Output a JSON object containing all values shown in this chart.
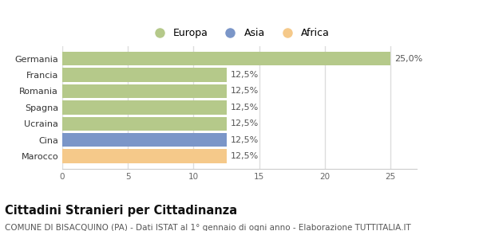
{
  "categories": [
    "Marocco",
    "Cina",
    "Ucraina",
    "Spagna",
    "Romania",
    "Francia",
    "Germania"
  ],
  "values": [
    12.5,
    12.5,
    12.5,
    12.5,
    12.5,
    12.5,
    25.0
  ],
  "bar_colors": [
    "#f5c98a",
    "#7b96c8",
    "#b5c98a",
    "#b5c98a",
    "#b5c98a",
    "#b5c98a",
    "#b5c98a"
  ],
  "bar_labels": [
    "12,5%",
    "12,5%",
    "12,5%",
    "12,5%",
    "12,5%",
    "12,5%",
    "25,0%"
  ],
  "xlim": [
    0,
    27
  ],
  "xticks": [
    0,
    5,
    10,
    15,
    20,
    25
  ],
  "legend_labels": [
    "Europa",
    "Asia",
    "Africa"
  ],
  "legend_colors": [
    "#b5c98a",
    "#7b96c8",
    "#f5c98a"
  ],
  "title": "Cittadini Stranieri per Cittadinanza",
  "subtitle": "COMUNE DI BISACQUINO (PA) - Dati ISTAT al 1° gennaio di ogni anno - Elaborazione TUTTITALIA.IT",
  "background_color": "#ffffff",
  "grid_color": "#dddddd",
  "label_fontsize": 8,
  "title_fontsize": 10.5,
  "subtitle_fontsize": 7.5
}
